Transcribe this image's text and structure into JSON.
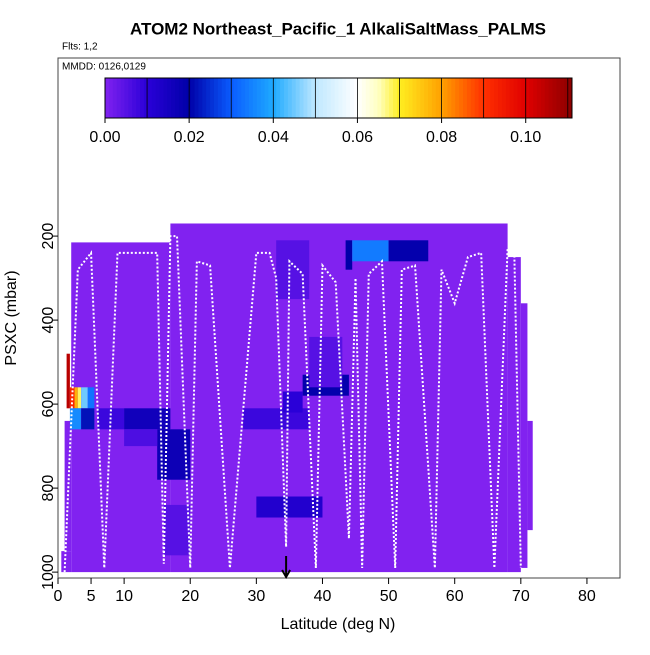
{
  "chart_data": {
    "type": "heatmap",
    "title": "ATOM2 Northeast_Pacific_1 AlkaliSaltMass_PALMS",
    "flights_label": "Flts: 1,2",
    "dates_label": "MMDD: 0126,0129",
    "x_label": "Latitude (deg N)",
    "y_label": "PSXC (mbar)",
    "xlim": [
      0,
      85
    ],
    "ylim": [
      1014,
      -224
    ],
    "xticks": [
      0,
      5,
      10,
      20,
      30,
      40,
      50,
      60,
      70,
      80
    ],
    "yticks": [
      200,
      400,
      600,
      800,
      1000
    ],
    "colormap": [
      [
        0,
        "#8122f0"
      ],
      [
        0.01,
        "#2a00d8"
      ],
      [
        0.02,
        "#0000a8"
      ],
      [
        0.03,
        "#0a5cff"
      ],
      [
        0.04,
        "#1eaaff"
      ],
      [
        0.05,
        "#bfe8ff"
      ],
      [
        0.06,
        "#ffffff"
      ],
      [
        0.065,
        "#ffffc0"
      ],
      [
        0.07,
        "#ffee20"
      ],
      [
        0.08,
        "#ffa000"
      ],
      [
        0.09,
        "#ff3000"
      ],
      [
        0.1,
        "#e00000"
      ],
      [
        0.111,
        "#8b0000"
      ]
    ],
    "colorbar": {
      "lim": [
        0,
        0.111
      ],
      "step": 0.01,
      "ticks": [
        {
          "value": 0,
          "label": "0.00"
        },
        {
          "value": 0.02,
          "label": "0.02"
        },
        {
          "value": 0.04,
          "label": "0.04"
        },
        {
          "value": 0.06,
          "label": "0.06"
        },
        {
          "value": 0.08,
          "label": "0.08"
        },
        {
          "value": 0.1,
          "label": "0.10"
        }
      ]
    },
    "cells": [
      {
        "x": [
          2,
          17
        ],
        "y": [
          215,
          1000
        ],
        "value": 0
      },
      {
        "x": [
          17,
          68
        ],
        "y": [
          170,
          1000
        ],
        "value": 0
      },
      {
        "x": [
          68,
          70
        ],
        "y": [
          250,
          1000
        ],
        "value": 0
      },
      {
        "x": [
          70,
          71
        ],
        "y": [
          360,
          990
        ],
        "value": 0
      },
      {
        "x": [
          71,
          71.8
        ],
        "y": [
          640,
          900
        ],
        "value": 0
      },
      {
        "x": [
          0.5,
          2
        ],
        "y": [
          950,
          1000
        ],
        "value": 0
      },
      {
        "x": [
          1,
          2
        ],
        "y": [
          640,
          950
        ],
        "value": 0
      },
      {
        "x": [
          1.3,
          1.8
        ],
        "y": [
          480,
          610
        ],
        "value": 0.105
      },
      {
        "x": [
          1.8,
          2.5
        ],
        "y": [
          560,
          610
        ],
        "value": 0.092
      },
      {
        "x": [
          2.5,
          3
        ],
        "y": [
          560,
          610
        ],
        "value": 0.078
      },
      {
        "x": [
          3,
          3.5
        ],
        "y": [
          560,
          610
        ],
        "value": 0.068
      },
      {
        "x": [
          3.5,
          4.5
        ],
        "y": [
          560,
          610
        ],
        "value": 0.045
      },
      {
        "x": [
          4.5,
          5.5
        ],
        "y": [
          560,
          610
        ],
        "value": 0.033
      },
      {
        "x": [
          1.8,
          3.5
        ],
        "y": [
          610,
          660
        ],
        "value": 0.036
      },
      {
        "x": [
          3.5,
          5.5
        ],
        "y": [
          610,
          660
        ],
        "value": 0.022
      },
      {
        "x": [
          6,
          10
        ],
        "y": [
          610,
          660
        ],
        "value": 0.008
      },
      {
        "x": [
          10,
          17
        ],
        "y": [
          610,
          660
        ],
        "value": 0.016
      },
      {
        "x": [
          15,
          20
        ],
        "y": [
          660,
          780
        ],
        "value": 0.017
      },
      {
        "x": [
          10,
          15
        ],
        "y": [
          660,
          700
        ],
        "value": 0.006
      },
      {
        "x": [
          28,
          38
        ],
        "y": [
          610,
          660
        ],
        "value": 0.008
      },
      {
        "x": [
          30,
          40
        ],
        "y": [
          820,
          870
        ],
        "value": 0.012
      },
      {
        "x": [
          37,
          44
        ],
        "y": [
          530,
          580
        ],
        "value": 0.019
      },
      {
        "x": [
          34,
          37
        ],
        "y": [
          570,
          620
        ],
        "value": 0.01
      },
      {
        "x": [
          43.5,
          44.5
        ],
        "y": [
          210,
          280
        ],
        "value": 0.02
      },
      {
        "x": [
          44.5,
          50
        ],
        "y": [
          210,
          260
        ],
        "value": 0.034
      },
      {
        "x": [
          50,
          56
        ],
        "y": [
          210,
          260
        ],
        "value": 0.019
      },
      {
        "x": [
          38,
          43
        ],
        "y": [
          440,
          560
        ],
        "value": 0.005
      },
      {
        "x": [
          33,
          38
        ],
        "y": [
          210,
          350
        ],
        "value": 0.005
      },
      {
        "x": [
          16,
          20
        ],
        "y": [
          840,
          960
        ],
        "value": 0.005
      }
    ],
    "track_color": "#ffffff",
    "track_x": [
      1,
      3,
      5,
      7,
      9,
      12,
      15,
      16,
      17,
      18,
      20,
      21,
      23,
      26,
      30,
      32,
      33,
      34.5,
      35,
      37,
      39,
      40,
      42,
      44,
      45,
      46,
      47,
      49,
      51,
      52,
      54,
      57,
      58,
      60,
      62,
      64,
      66,
      68,
      69,
      70
    ],
    "track_y": [
      1000,
      280,
      240,
      990,
      240,
      240,
      240,
      980,
      200,
      200,
      990,
      260,
      270,
      990,
      240,
      240,
      300,
      940,
      260,
      290,
      990,
      270,
      310,
      920,
      300,
      990,
      290,
      260,
      990,
      280,
      270,
      990,
      280,
      360,
      250,
      240,
      990,
      230,
      230,
      990
    ],
    "marker_x": 34.5
  }
}
